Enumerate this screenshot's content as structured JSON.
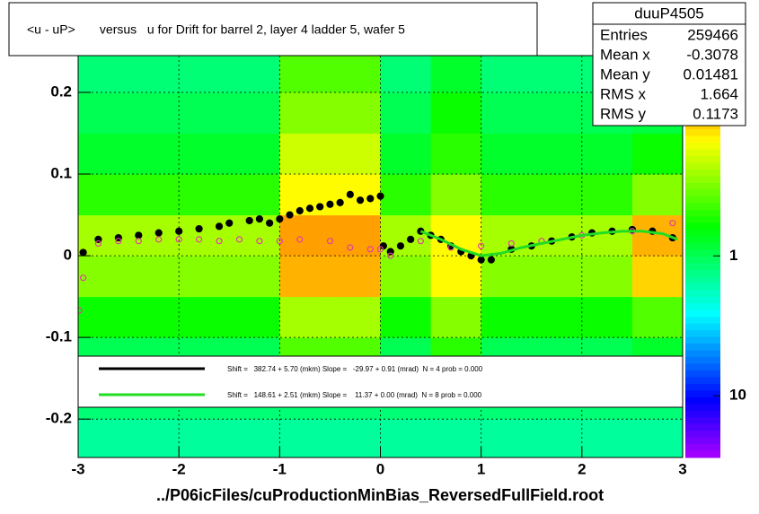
{
  "chart_data": {
    "type": "heatmap",
    "title": "<u - uP>       versus   u for Drift for barrel 2, layer 4 ladder 5, wafer 5",
    "xlabel": "../P06icFiles/cuProductionMinBias_ReversedFullField.root",
    "xlim": [
      -3,
      3
    ],
    "xticks": [
      -3,
      -2,
      -1,
      0,
      1,
      2,
      3
    ],
    "ylim": [
      -0.247,
      0.245
    ],
    "yticks": [
      -0.2,
      -0.1,
      0,
      0.1,
      0.2
    ],
    "grid": true,
    "heatmap": {
      "xbins": [
        -3,
        -2.5,
        -2,
        -1.5,
        -1,
        -0.5,
        0,
        0.5,
        1,
        1.5,
        2,
        2.5,
        3
      ],
      "ybins": [
        -0.25,
        -0.2,
        -0.15,
        -0.1,
        -0.05,
        0,
        0.05,
        0.1,
        0.15,
        0.2,
        0.25
      ],
      "z": [
        [
          1.5,
          1.5,
          1.5,
          1.5,
          1.5,
          1.5,
          1.5,
          1.5,
          1.5,
          1.5,
          1.5,
          1.5
        ],
        [
          1.2,
          1.2,
          1.2,
          1.2,
          1.2,
          1.2,
          1.2,
          1.2,
          1.2,
          1.2,
          1.2,
          1.2
        ],
        [
          1.0,
          1.0,
          1.0,
          1.0,
          0.4,
          0.4,
          1.0,
          0.5,
          1.0,
          1.0,
          1.0,
          0.8
        ],
        [
          0.6,
          0.6,
          0.6,
          0.6,
          0.25,
          0.25,
          0.6,
          0.3,
          0.6,
          0.6,
          0.6,
          0.4
        ],
        [
          0.3,
          0.3,
          0.3,
          0.3,
          0.1,
          0.1,
          0.3,
          0.15,
          0.3,
          0.3,
          0.3,
          0.12
        ],
        [
          0.25,
          0.25,
          0.25,
          0.25,
          0.09,
          0.09,
          0.25,
          0.15,
          0.25,
          0.25,
          0.25,
          0.1
        ],
        [
          0.5,
          0.5,
          0.5,
          0.5,
          0.15,
          0.15,
          0.5,
          0.3,
          0.5,
          0.5,
          0.5,
          0.3
        ],
        [
          0.8,
          0.8,
          0.8,
          0.8,
          0.2,
          0.2,
          0.8,
          0.5,
          0.8,
          0.8,
          0.8,
          0.6
        ],
        [
          1.0,
          1.0,
          1.0,
          1.0,
          0.3,
          0.3,
          1.0,
          0.6,
          1.0,
          1.0,
          1.0,
          0.9
        ],
        [
          1.2,
          1.2,
          1.2,
          1.2,
          0.4,
          0.4,
          1.2,
          0.8,
          1.2,
          1.2,
          1.2,
          1.1
        ]
      ]
    },
    "zlim": [
      0.037,
      27.6
    ],
    "zticks": [
      1,
      10
    ],
    "zlog": true,
    "series": [
      {
        "kind": "filled-circle",
        "color": "#000000",
        "x": [
          -2.95,
          -2.8,
          -2.6,
          -2.4,
          -2.2,
          -2.0,
          -1.8,
          -1.6,
          -1.5,
          -1.3,
          -1.2,
          -1.1,
          -1.0,
          -0.9,
          -0.8,
          -0.7,
          -0.6,
          -0.5,
          -0.4,
          -0.3,
          -0.2,
          -0.1,
          0.0,
          0.03,
          0.1,
          0.2,
          0.3,
          0.4,
          0.5,
          0.6,
          0.7,
          0.8,
          0.9,
          1.0,
          1.1,
          1.3,
          1.5,
          1.7,
          1.9,
          2.1,
          2.3,
          2.5,
          2.7,
          2.9
        ],
        "values": [
          0.004,
          0.02,
          0.022,
          0.025,
          0.028,
          0.03,
          0.033,
          0.036,
          0.04,
          0.043,
          0.045,
          0.04,
          0.045,
          0.05,
          0.055,
          0.058,
          0.06,
          0.063,
          0.065,
          0.075,
          0.068,
          0.07,
          0.073,
          0.012,
          0.005,
          0.012,
          0.02,
          0.03,
          0.025,
          0.02,
          0.012,
          0.005,
          0.0,
          -0.005,
          -0.005,
          0.008,
          0.012,
          0.018,
          0.023,
          0.028,
          0.03,
          0.032,
          0.03,
          0.022
        ]
      },
      {
        "kind": "open-circle",
        "color": "#e040a0",
        "x": [
          -2.99,
          -2.95,
          -2.8,
          -2.6,
          -2.4,
          -2.2,
          -2.0,
          -1.8,
          -1.6,
          -1.4,
          -1.2,
          -1.0,
          -0.8,
          -0.5,
          -0.3,
          -0.1,
          0.0,
          0.1,
          0.4,
          0.7,
          1.0,
          1.3,
          1.6,
          2.0,
          2.5,
          2.9
        ],
        "values": [
          -0.067,
          -0.027,
          0.015,
          0.018,
          0.018,
          0.02,
          0.02,
          0.02,
          0.018,
          0.02,
          0.018,
          0.018,
          0.02,
          0.018,
          0.01,
          0.008,
          0.008,
          0.0,
          0.018,
          0.01,
          0.012,
          0.015,
          0.018,
          0.025,
          0.03,
          0.04
        ]
      },
      {
        "kind": "line",
        "color": "#22dd22",
        "x": [
          0.4,
          0.6,
          0.8,
          1.0,
          1.2,
          1.4,
          1.6,
          1.8,
          2.0,
          2.2,
          2.4,
          2.6,
          2.8,
          2.95
        ],
        "values": [
          0.03,
          0.02,
          0.008,
          0.0,
          0.003,
          0.01,
          0.015,
          0.02,
          0.025,
          0.028,
          0.03,
          0.03,
          0.027,
          0.02
        ]
      }
    ],
    "legend": [
      {
        "color": "#000000",
        "label": "Shift =   382.74 + 5.70 (mkm) Slope =   -29.97 + 0.91 (mrad)  N = 4 prob = 0.000"
      },
      {
        "color": "#22dd22",
        "label": "Shift =   148.61 + 2.51 (mkm) Slope =    11.37 + 0.00 (mrad)  N = 8 prob = 0.000"
      }
    ],
    "stats": {
      "title": "duuP4505",
      "rows": [
        [
          "Entries",
          259466
        ],
        [
          "Mean x",
          -0.3078
        ],
        [
          "Mean y",
          0.01481
        ],
        [
          "RMS x",
          1.664
        ],
        [
          "RMS y",
          0.1173
        ]
      ]
    }
  }
}
